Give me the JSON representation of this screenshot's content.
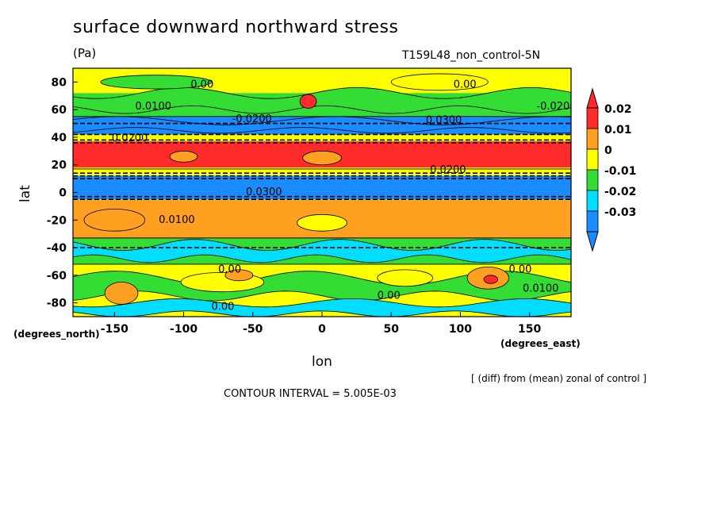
{
  "chart_data": {
    "type": "heatmap",
    "title": "surface downward northward stress",
    "units": "(Pa)",
    "experiment": "T159L48_non_control-5N",
    "xlabel": "lon",
    "ylabel": "lat",
    "x_units": "(degrees_east)",
    "y_units": "(degrees_north)",
    "x_ticks": [
      -150,
      -100,
      -50,
      0,
      50,
      100,
      150
    ],
    "y_ticks": [
      80,
      60,
      40,
      20,
      0,
      -20,
      -40,
      -60,
      -80
    ],
    "xlim": [
      -180,
      180
    ],
    "ylim": [
      -90,
      90
    ],
    "colorbar": {
      "labels": [
        "0.02",
        "0.01",
        "0",
        "-0.01",
        "-0.02",
        "-0.03"
      ],
      "colors": [
        "#ff2a2a",
        "#ffa020",
        "#ffff00",
        "#33dd33",
        "#00ddff",
        "#1a8cff"
      ]
    },
    "contour_labels": [
      "0.00",
      "0.0100",
      "-0.0200",
      "0.0200",
      "0.0300"
    ],
    "zonal_bands": [
      {
        "lat": [
          72,
          90
        ],
        "value": 0.0
      },
      {
        "lat": [
          55,
          72
        ],
        "value": -0.015
      },
      {
        "lat": [
          42,
          55
        ],
        "value": -0.028
      },
      {
        "lat": [
          37,
          42
        ],
        "value": -0.005
      },
      {
        "lat": [
          18,
          37
        ],
        "value": 0.022
      },
      {
        "lat": [
          12,
          18
        ],
        "value": 0.002
      },
      {
        "lat": [
          -5,
          12
        ],
        "value": -0.032
      },
      {
        "lat": [
          -33,
          -5
        ],
        "value": 0.005
      },
      {
        "lat": [
          -52,
          -33
        ],
        "value": -0.013
      },
      {
        "lat": [
          -90,
          -52
        ],
        "value": -0.002
      }
    ],
    "note": "[ (diff) from (mean) zonal of control ]",
    "contour_interval": "CONTOUR INTERVAL = 5.005E-03"
  }
}
